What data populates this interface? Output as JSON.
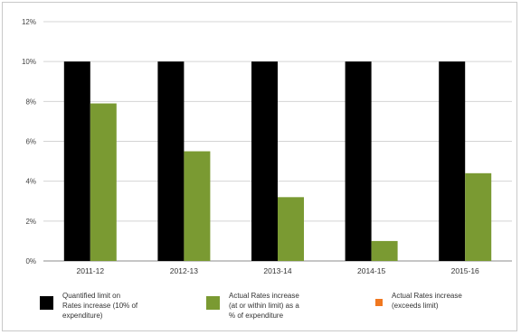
{
  "chart_data": {
    "type": "bar",
    "title": "",
    "xlabel": "",
    "ylabel": "",
    "ylim": [
      0,
      12
    ],
    "y_ticks": [
      "0%",
      "2%",
      "4%",
      "6%",
      "8%",
      "10%",
      "12%"
    ],
    "y_tick_values": [
      0,
      2,
      4,
      6,
      8,
      10,
      12
    ],
    "categories": [
      "2011-12",
      "2012-13",
      "2013-14",
      "2014-15",
      "2015-16"
    ],
    "series": [
      {
        "name": "Quantified limit on Rates increase (10% of expenditure)",
        "color": "#000000",
        "values": [
          10,
          10,
          10,
          10,
          10
        ]
      },
      {
        "name": "Actual Rates increase (at or within limit) as a % of expenditure",
        "color": "#7a9a32",
        "values": [
          7.9,
          5.5,
          3.2,
          1.0,
          4.4
        ]
      },
      {
        "name": "Actual Rates increase (exceeds limit)",
        "color": "#f07820",
        "values": [
          0,
          0,
          0,
          0,
          0
        ]
      }
    ],
    "grid": true,
    "legend_position": "bottom"
  },
  "legend": {
    "items": [
      {
        "label": "Quantified limit on\nRates increase (10% of\nexpenditure)",
        "color": "#000000",
        "icon": "black-square"
      },
      {
        "label": "Actual Rates increase\n(at or within limit) as a\n% of expenditure",
        "color": "#7a9a32",
        "icon": "green-square"
      },
      {
        "label": "Actual Rates increase\n(exceeds limit)",
        "color": "#f07820",
        "icon": "orange-square"
      }
    ]
  }
}
